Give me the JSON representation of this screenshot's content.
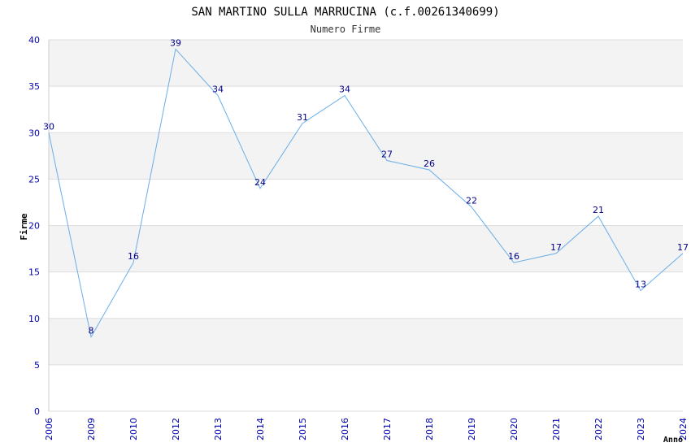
{
  "chart_data": {
    "type": "line",
    "title": "SAN MARTINO SULLA MARRUCINA (c.f.00261340699)",
    "subtitle": "Numero Firme",
    "xlabel": "Anno",
    "ylabel": "Firme",
    "categories": [
      "2006",
      "2009",
      "2010",
      "2012",
      "2013",
      "2014",
      "2015",
      "2016",
      "2017",
      "2018",
      "2019",
      "2020",
      "2021",
      "2022",
      "2023",
      "2024"
    ],
    "values": [
      30,
      8,
      16,
      39,
      34,
      24,
      31,
      34,
      27,
      26,
      22,
      16,
      17,
      21,
      13,
      17
    ],
    "ylim": [
      0,
      40
    ],
    "yticks": [
      "0",
      "5",
      "10",
      "15",
      "20",
      "25",
      "30",
      "35",
      "40"
    ],
    "grid": true,
    "band_colors": [
      "#ffffff",
      "#f3f3f3"
    ],
    "line_color": "#6aaee8",
    "tick_color": "#0000aa",
    "label_color": "#000088"
  }
}
